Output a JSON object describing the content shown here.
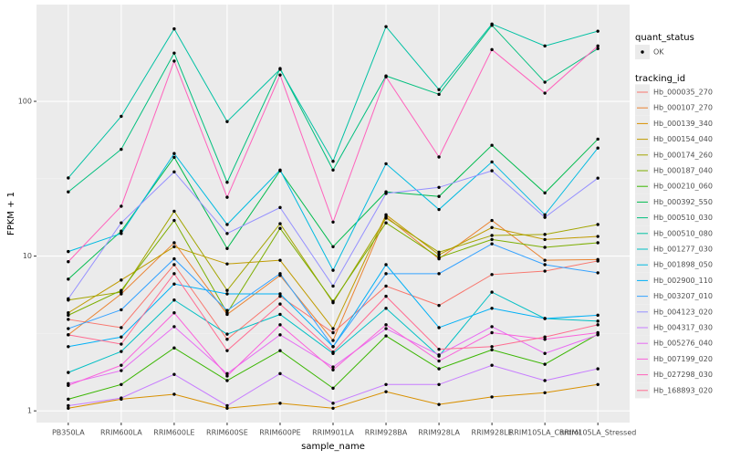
{
  "chart_data": {
    "type": "line",
    "log_y": true,
    "grid": true,
    "x_label": "sample_name",
    "y_label": "FPKM + 1",
    "categories": [
      "PB350LA",
      "RRIM600LA",
      "RRIM600LE",
      "RRIM600SE",
      "RRIM600PE",
      "RRIM901LA",
      "RRIM928BA",
      "RRIM928LA",
      "RRIM928LE",
      "RRIM105LA_Control",
      "RRIM105LA_Stressed"
    ],
    "ylim": [
      0.84,
      422
    ],
    "yticks": [
      1,
      10,
      100
    ],
    "shape_legend": {
      "title": "quant_status",
      "labels": [
        "OK"
      ]
    },
    "legend_title": "tracking_id",
    "series": [
      {
        "name": "Hb_000035_270",
        "color": "#F8766D",
        "values": [
          3.9,
          3.45,
          8.8,
          2.9,
          5.5,
          3.2,
          6.4,
          4.8,
          7.6,
          8.0,
          9.3
        ]
      },
      {
        "name": "Hb_000107_270",
        "color": "#EA8331",
        "values": [
          3.1,
          5.7,
          12.2,
          4.2,
          7.5,
          2.85,
          18.0,
          9.6,
          17.0,
          9.4,
          9.5
        ]
      },
      {
        "name": "Hb_000139_340",
        "color": "#D89000",
        "values": [
          1.04,
          1.19,
          1.28,
          1.04,
          1.12,
          1.04,
          1.33,
          1.1,
          1.23,
          1.31,
          1.48
        ]
      },
      {
        "name": "Hb_000154_040",
        "color": "#C09B00",
        "values": [
          4.3,
          7.0,
          11.5,
          8.9,
          9.4,
          3.4,
          18.5,
          10.2,
          15.3,
          12.8,
          13.4
        ]
      },
      {
        "name": "Hb_000174_260",
        "color": "#A3A500",
        "values": [
          5.2,
          5.85,
          19.5,
          6.0,
          16.2,
          5.0,
          17.6,
          10.6,
          13.6,
          13.8,
          16.0
        ]
      },
      {
        "name": "Hb_000187_040",
        "color": "#7CAE00",
        "values": [
          4.15,
          6.0,
          17.0,
          4.3,
          15.1,
          5.1,
          16.4,
          9.8,
          12.8,
          11.4,
          12.2
        ]
      },
      {
        "name": "Hb_000210_060",
        "color": "#39B600",
        "values": [
          1.19,
          1.48,
          2.55,
          1.57,
          2.45,
          1.4,
          3.05,
          1.87,
          2.48,
          2.0,
          3.13
        ]
      },
      {
        "name": "Hb_000392_550",
        "color": "#00BB4E",
        "values": [
          7.1,
          14.5,
          43.5,
          11.2,
          35.6,
          11.5,
          26,
          24.3,
          52,
          25.6,
          57
        ]
      },
      {
        "name": "Hb_000510_030",
        "color": "#00BF7D",
        "values": [
          26,
          49,
          205,
          30,
          163,
          36,
          146,
          111,
          310,
          133,
          219
        ]
      },
      {
        "name": "Hb_000510_080",
        "color": "#00C1A3",
        "values": [
          32,
          80,
          294,
          74,
          161,
          41,
          304,
          119,
          316,
          228,
          284
        ]
      },
      {
        "name": "Hb_001277_030",
        "color": "#00BFC4",
        "values": [
          1.77,
          2.42,
          5.2,
          3.13,
          4.2,
          2.35,
          4.6,
          2.26,
          5.85,
          3.95,
          3.8
        ]
      },
      {
        "name": "Hb_001898_050",
        "color": "#00BAE0",
        "values": [
          10.7,
          14,
          46,
          16,
          36,
          8.1,
          39.5,
          20,
          40.6,
          18.5,
          49.9
        ]
      },
      {
        "name": "Hb_002900_110",
        "color": "#00B0F6",
        "values": [
          2.6,
          3.0,
          6.6,
          5.7,
          5.7,
          2.6,
          8.8,
          3.45,
          4.6,
          3.95,
          4.15
        ]
      },
      {
        "name": "Hb_003207_010",
        "color": "#35A2FF",
        "values": [
          3.4,
          4.5,
          9.6,
          4.45,
          7.7,
          2.6,
          7.7,
          7.7,
          12.0,
          8.8,
          7.8
        ]
      },
      {
        "name": "Hb_004123_020",
        "color": "#9590FF",
        "values": [
          5.3,
          16.4,
          35,
          14,
          20.6,
          6.4,
          25.4,
          27.8,
          35.6,
          17.8,
          31.9
        ]
      },
      {
        "name": "Hb_004317_030",
        "color": "#C77CFF",
        "values": [
          1.08,
          1.21,
          1.72,
          1.08,
          1.74,
          1.12,
          1.48,
          1.48,
          1.97,
          1.57,
          1.87
        ]
      },
      {
        "name": "Hb_005276_040",
        "color": "#E76BF3",
        "values": [
          1.5,
          1.82,
          3.5,
          1.74,
          3.1,
          1.92,
          3.4,
          2.3,
          3.5,
          2.35,
          3.1
        ]
      },
      {
        "name": "Hb_007199_020",
        "color": "#FA62DB",
        "values": [
          1.46,
          1.97,
          4.3,
          1.68,
          3.6,
          1.84,
          3.6,
          2.1,
          3.2,
          2.9,
          3.2
        ]
      },
      {
        "name": "Hb_027298_030",
        "color": "#FF62BC",
        "values": [
          9.2,
          21,
          182,
          24,
          148,
          16.6,
          144,
          43.7,
          216,
          113,
          228
        ]
      },
      {
        "name": "Hb_168893_020",
        "color": "#FF6C91",
        "values": [
          3.1,
          2.7,
          7.7,
          2.45,
          4.9,
          2.4,
          5.5,
          2.5,
          2.6,
          3.0,
          3.6
        ]
      }
    ]
  }
}
